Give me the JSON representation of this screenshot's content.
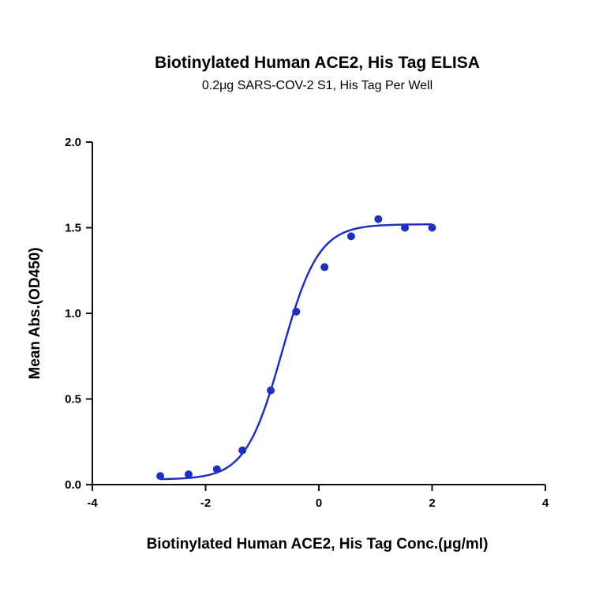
{
  "chart_data": {
    "type": "scatter",
    "title": "Biotinylated Human ACE2, His Tag ELISA",
    "subtitle": "0.2μg SARS-COV-2 S1, His Tag Per Well",
    "xlabel": "Biotinylated Human ACE2, His Tag Conc.(μg/ml)",
    "ylabel": "Mean Abs.(OD450)",
    "xlim": [
      -4,
      4
    ],
    "ylim": [
      0,
      2
    ],
    "xticks": [
      "-4",
      "-2",
      "0",
      "2",
      "4"
    ],
    "yticks": [
      "0.0",
      "0.5",
      "1.0",
      "1.5",
      "2.0"
    ],
    "grid": false,
    "color": "#1f2fbf",
    "points": [
      {
        "x": -2.8,
        "y": 0.05
      },
      {
        "x": -2.3,
        "y": 0.06
      },
      {
        "x": -1.8,
        "y": 0.09
      },
      {
        "x": -1.35,
        "y": 0.2
      },
      {
        "x": -0.85,
        "y": 0.55
      },
      {
        "x": -0.4,
        "y": 1.01
      },
      {
        "x": 0.1,
        "y": 1.27
      },
      {
        "x": 0.57,
        "y": 1.45
      },
      {
        "x": 1.05,
        "y": 1.55
      },
      {
        "x": 1.52,
        "y": 1.5
      },
      {
        "x": 2.0,
        "y": 1.5
      }
    ],
    "fit": {
      "model": "4-parameter logistic",
      "bottom": 0.03,
      "top": 1.52,
      "logEC50": -0.65,
      "hillslope": 1.35,
      "x_range": [
        -2.8,
        2.0
      ]
    }
  }
}
